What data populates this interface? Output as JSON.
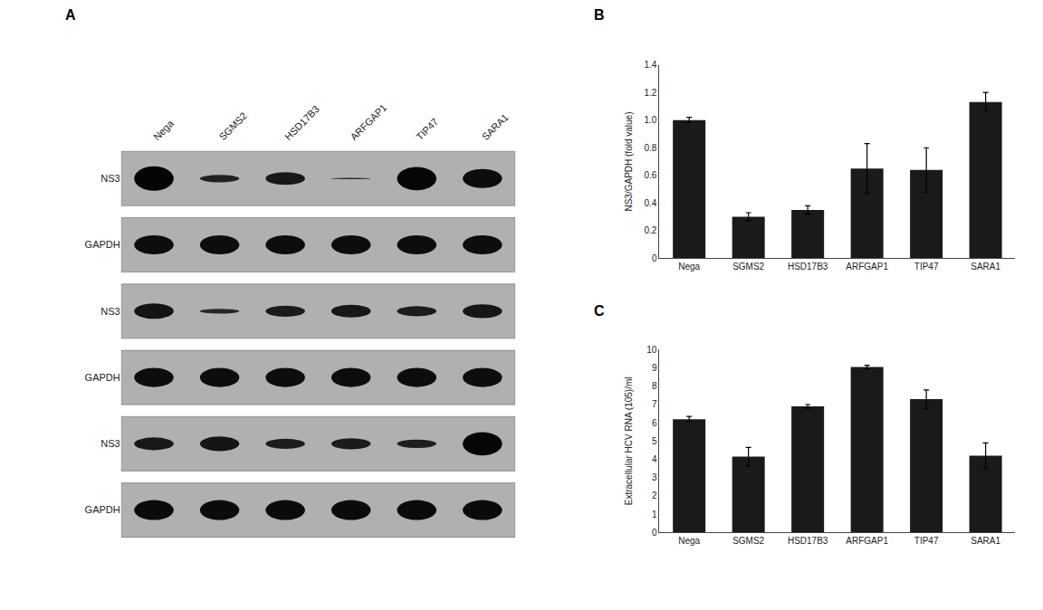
{
  "chart_data": [
    {
      "type": "blot",
      "title": "A",
      "categories": [
        "Nega",
        "SGMS2",
        "HSD17B3",
        "ARFGAP1",
        "TIP47",
        "SARA1"
      ],
      "rows": [
        {
          "label": "NS3",
          "values": [
            0.92,
            0.28,
            0.48,
            0.05,
            0.88,
            0.72
          ]
        },
        {
          "label": "GAPDH",
          "values": [
            0.72,
            0.72,
            0.72,
            0.72,
            0.72,
            0.72
          ]
        },
        {
          "label": "NS3",
          "values": [
            0.58,
            0.18,
            0.42,
            0.48,
            0.38,
            0.52
          ]
        },
        {
          "label": "GAPDH",
          "values": [
            0.72,
            0.72,
            0.72,
            0.72,
            0.72,
            0.72
          ]
        },
        {
          "label": "NS3",
          "values": [
            0.48,
            0.55,
            0.38,
            0.42,
            0.32,
            0.88
          ]
        },
        {
          "label": "GAPDH",
          "values": [
            0.75,
            0.75,
            0.75,
            0.75,
            0.75,
            0.75
          ]
        }
      ]
    },
    {
      "type": "bar",
      "title": "B",
      "categories": [
        "Nega",
        "SGMS2",
        "HSD17B3",
        "ARFGAP1",
        "TIP47",
        "SARA1"
      ],
      "values": [
        1.0,
        0.3,
        0.35,
        0.65,
        0.64,
        1.13
      ],
      "errors": [
        0.02,
        0.03,
        0.03,
        0.18,
        0.16,
        0.07
      ],
      "color": "#1a1a1a",
      "y_label": "NS3/GAPDH (fold value)",
      "ylim": [
        0,
        1.4
      ],
      "yticks": [
        0,
        0.2,
        0.4,
        0.6,
        0.8,
        {
          "value": 1.0,
          "label": "1.0"
        },
        1.2,
        1.4
      ],
      "grid": false
    },
    {
      "type": "bar",
      "title": "C",
      "categories": [
        "Nega",
        "SGMS2",
        "HSD17B3",
        "ARFGAP1",
        "TIP47",
        "SARA1"
      ],
      "values": [
        6.2,
        4.15,
        6.9,
        9.05,
        7.3,
        4.2
      ],
      "errors": [
        0.15,
        0.5,
        0.1,
        0.1,
        0.5,
        0.7
      ],
      "color": "#1a1a1a",
      "y_label": "Extracellular HCV RNA (105)/ml",
      "ylim": [
        0,
        10
      ],
      "yticks": [
        0,
        1,
        2,
        3,
        4,
        5,
        6,
        7,
        8,
        9,
        10
      ],
      "grid": false
    }
  ]
}
